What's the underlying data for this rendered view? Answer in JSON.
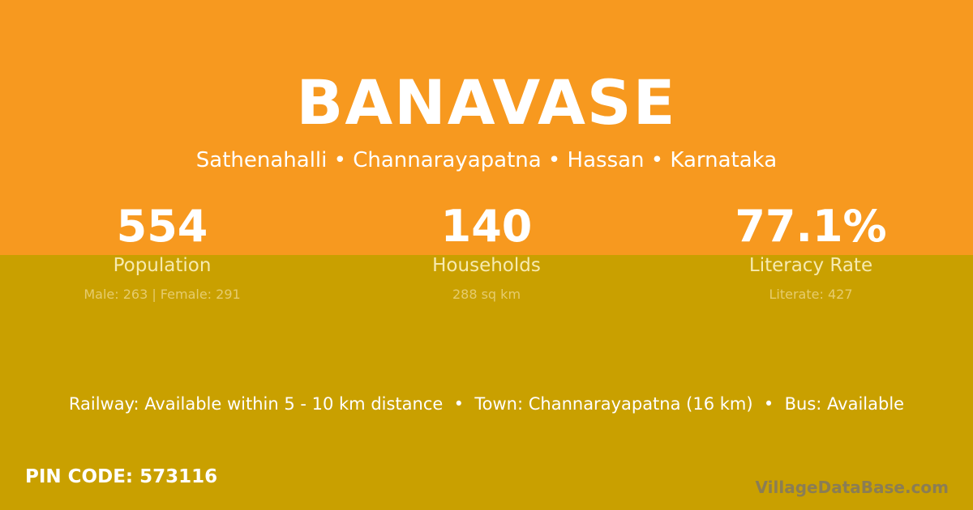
{
  "village": {
    "name": "BANAVASE",
    "location": "Sathenahalli • Channarayapatna • Hassan • Karnataka"
  },
  "colors": {
    "top": "#f7991f",
    "bottom": "#c9a000"
  },
  "stats": [
    {
      "value": "554",
      "label": "Population",
      "note": "Male: 263 | Female: 291"
    },
    {
      "value": "140",
      "label": "Households",
      "note": "288 sq km"
    },
    {
      "value": "77.1%",
      "label": "Literacy Rate",
      "note": "Literate: 427"
    }
  ],
  "transport": "Railway: Available within 5 - 10 km distance  •  Town: Channarayapatna (16 km)  •  Bus: Available",
  "pin": "PIN CODE: 573116",
  "logo": "VillageDataBase.com"
}
